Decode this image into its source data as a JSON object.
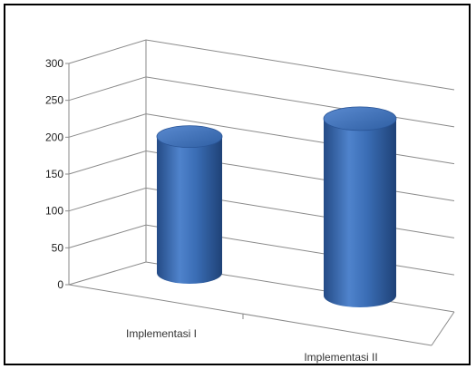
{
  "chart_data": {
    "type": "bar",
    "style": "3d-cylinder",
    "categories": [
      "Implementasi I",
      "Implementasi II"
    ],
    "values": [
      185,
      240
    ],
    "yticks": [
      0,
      50,
      100,
      150,
      200,
      250,
      300
    ],
    "ylim": [
      0,
      300
    ],
    "grid": true,
    "legend": "none",
    "colors": {
      "bar": "#3a6db5",
      "bar_dark": "#244b86",
      "bar_light": "#6f9bd8",
      "grid": "#8a8a8a"
    }
  }
}
